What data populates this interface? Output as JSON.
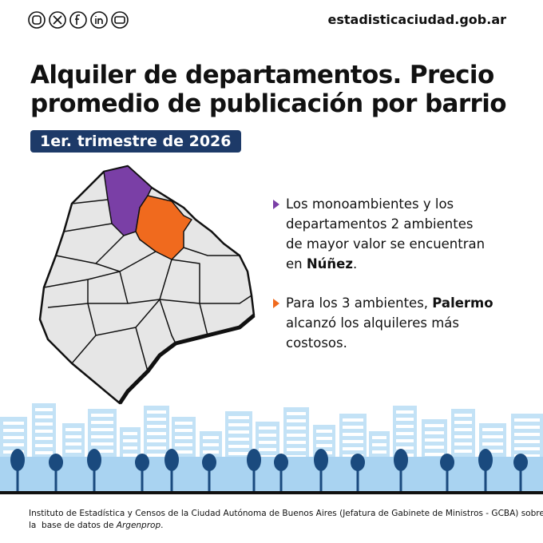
{
  "header": {
    "site": "estadisticaciudad.gob.ar"
  },
  "title": [
    "Alquiler de departamentos. Precio",
    "promedio de publicación por barrio"
  ],
  "badge": "1er. trimestre de 2026",
  "bullets": [
    {
      "color": "#7a3fa6",
      "lines": [
        [
          {
            "text": "Los monoambientes y los"
          }
        ],
        [
          {
            "text": "departamentos 2 ambientes"
          }
        ],
        [
          {
            "text": "de mayor valor se encuentran"
          }
        ],
        [
          {
            "text": "en "
          },
          {
            "text": "Núñez",
            "bold": true
          },
          {
            "text": "."
          }
        ]
      ]
    },
    {
      "color": "#f06a1e",
      "lines": [
        [
          {
            "text": "Para los 3 ambientes, "
          },
          {
            "text": "Palermo",
            "bold": true
          }
        ],
        [
          {
            "text": "alcanzó los alquileres más"
          }
        ],
        [
          {
            "text": "costosos."
          }
        ]
      ]
    }
  ],
  "footer": [
    [
      {
        "text": "Instituto de Estadística y Censos de la Ciudad Autónoma de Buenos Aires (Jefatura de Gabinete de Ministros - GCBA) sobre"
      }
    ],
    [
      {
        "text": "la  base de datos de "
      },
      {
        "text": "Argenprop",
        "italic": true
      },
      {
        "text": "."
      }
    ]
  ]
}
